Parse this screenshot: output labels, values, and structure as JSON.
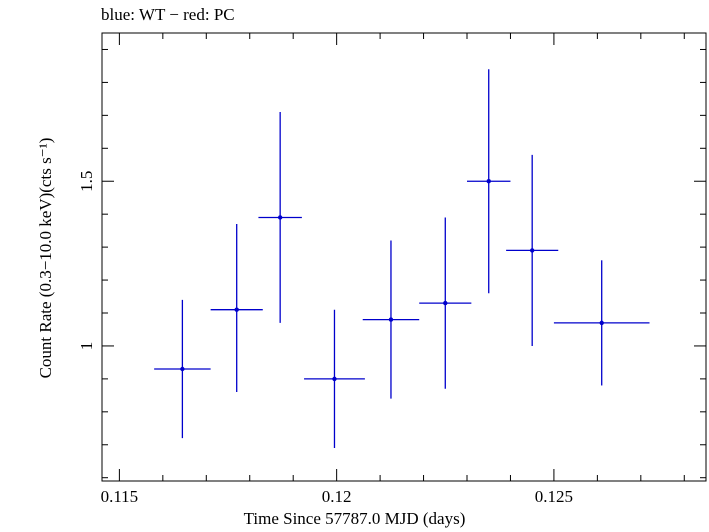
{
  "chart_data": {
    "type": "scatter",
    "title": "blue: WT − red: PC",
    "xlabel": "Time Since 57787.0 MJD (days)",
    "ylabel": "Count Rate (0.3−10.0 keV)(cts s⁻¹)",
    "xlim": [
      0.1146,
      0.1285
    ],
    "ylim": [
      0.59,
      1.95
    ],
    "x_ticks": [
      0.115,
      0.12,
      0.125
    ],
    "x_tick_labels": [
      "0.115",
      "0.12",
      "0.125"
    ],
    "y_ticks": [
      1,
      1.5
    ],
    "y_tick_labels": [
      "1",
      "1.5"
    ],
    "grid": false,
    "series": [
      {
        "color": "#0000cc",
        "points": [
          {
            "x": 0.11645,
            "xerr": 0.00065,
            "y": 0.93,
            "yerr_low": 0.21,
            "yerr_high": 0.21
          },
          {
            "x": 0.1177,
            "xerr": 0.0006,
            "y": 1.11,
            "yerr_low": 0.25,
            "yerr_high": 0.26
          },
          {
            "x": 0.1187,
            "xerr": 0.0005,
            "y": 1.39,
            "yerr_low": 0.32,
            "yerr_high": 0.32
          },
          {
            "x": 0.11995,
            "xerr": 0.0007,
            "y": 0.9,
            "yerr_low": 0.21,
            "yerr_high": 0.21
          },
          {
            "x": 0.12125,
            "xerr": 0.00065,
            "y": 1.08,
            "yerr_low": 0.24,
            "yerr_high": 0.24
          },
          {
            "x": 0.1225,
            "xerr": 0.0006,
            "y": 1.13,
            "yerr_low": 0.26,
            "yerr_high": 0.26
          },
          {
            "x": 0.1235,
            "xerr": 0.0005,
            "y": 1.5,
            "yerr_low": 0.34,
            "yerr_high": 0.34
          },
          {
            "x": 0.1245,
            "xerr": 0.0006,
            "y": 1.29,
            "yerr_low": 0.29,
            "yerr_high": 0.29
          },
          {
            "x": 0.1261,
            "xerr": 0.0011,
            "y": 1.07,
            "yerr_low": 0.19,
            "yerr_high": 0.19
          }
        ]
      }
    ]
  }
}
